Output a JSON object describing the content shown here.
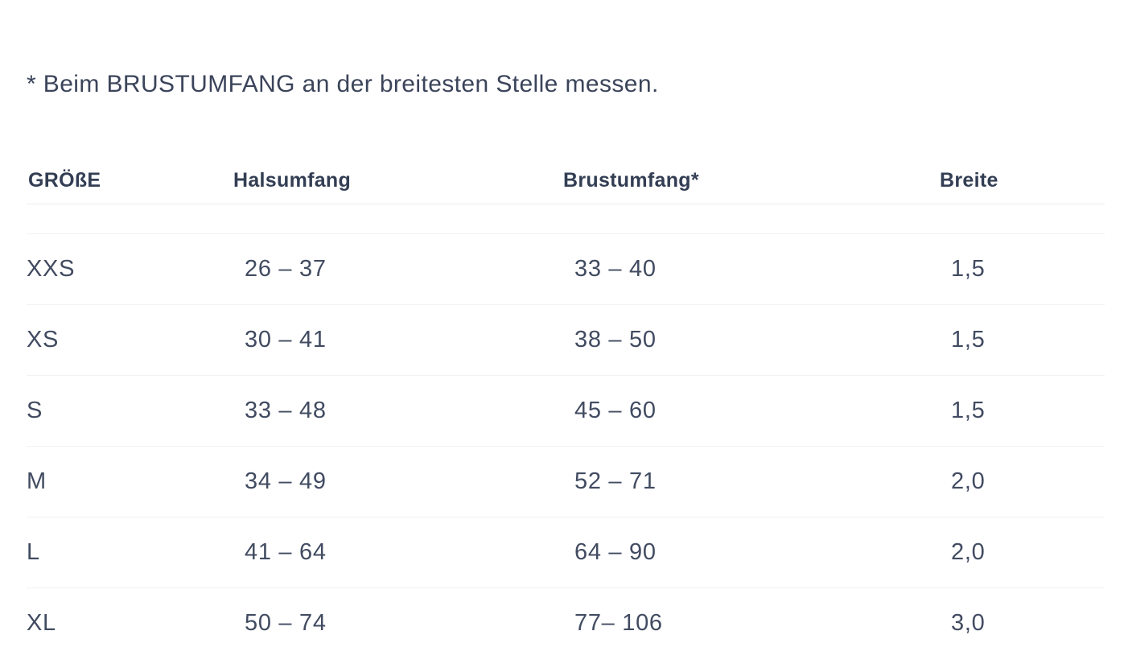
{
  "note": "* Beim BRUSTUMFANG an der breitesten Stelle messen.",
  "table": {
    "columns": [
      "GRÖßE",
      "Halsumfang",
      "Brustumfang*",
      "Breite"
    ],
    "rows": [
      {
        "size": "XXS",
        "halsumfang": "26 – 37",
        "brustumfang": "33 – 40",
        "breite": "1,5"
      },
      {
        "size": "XS",
        "halsumfang": "30 – 41",
        "brustumfang": "38 – 50",
        "breite": "1,5"
      },
      {
        "size": "S",
        "halsumfang": "33 – 48",
        "brustumfang": "45 – 60",
        "breite": "1,5"
      },
      {
        "size": "M",
        "halsumfang": "34 – 49",
        "brustumfang": "52 – 71",
        "breite": "2,0"
      },
      {
        "size": "L",
        "halsumfang": "41 – 64",
        "brustumfang": "64 – 90",
        "breite": "2,0"
      },
      {
        "size": "XL",
        "halsumfang": "50 – 74",
        "brustumfang": "77– 106",
        "breite": "3,0"
      }
    ]
  },
  "colors": {
    "background": "#ffffff",
    "header_text": "#333e54",
    "body_text": "#414b61",
    "divider": "#f1f1f1"
  }
}
